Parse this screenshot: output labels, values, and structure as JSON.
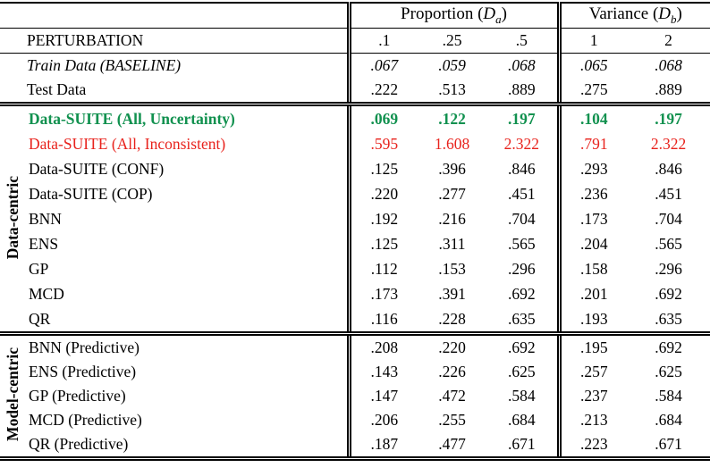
{
  "colors": {
    "highlight_green": "#11914f",
    "highlight_red": "#e8231d",
    "rule_black": "#000000"
  },
  "header": {
    "proportion": {
      "prefix": "Proportion (",
      "var": "D",
      "sub": "a",
      "suffix": ")"
    },
    "variance": {
      "prefix": "Variance (",
      "var": "D",
      "sub": "b",
      "suffix": ")"
    }
  },
  "perturbation": {
    "label": "PERTURBATION",
    "values": [
      ".1",
      ".25",
      ".5",
      "1",
      "2"
    ]
  },
  "baseline": {
    "rows": [
      {
        "label": "Train Data (BASELINE)",
        "values": [
          ".067",
          ".059",
          ".068",
          ".065",
          ".068"
        ]
      },
      {
        "label": "Test Data",
        "values": [
          ".222",
          ".513",
          ".889",
          ".275",
          ".889"
        ]
      }
    ]
  },
  "data_centric": {
    "group_label": "Data-centric",
    "rows": [
      {
        "label": "Data-SUITE (All, Uncertainty)",
        "values": [
          ".069",
          ".122",
          ".197",
          ".104",
          ".197"
        ]
      },
      {
        "label": "Data-SUITE (All, Inconsistent)",
        "values": [
          ".595",
          "1.608",
          "2.322",
          ".791",
          "2.322"
        ]
      },
      {
        "label": "Data-SUITE (CONF)",
        "values": [
          ".125",
          ".396",
          ".846",
          ".293",
          ".846"
        ]
      },
      {
        "label": "Data-SUITE (COP)",
        "values": [
          ".220",
          ".277",
          ".451",
          ".236",
          ".451"
        ]
      },
      {
        "label": "BNN",
        "values": [
          ".192",
          ".216",
          ".704",
          ".173",
          ".704"
        ]
      },
      {
        "label": "ENS",
        "values": [
          ".125",
          ".311",
          ".565",
          ".204",
          ".565"
        ]
      },
      {
        "label": "GP",
        "values": [
          ".112",
          ".153",
          ".296",
          ".158",
          ".296"
        ]
      },
      {
        "label": "MCD",
        "values": [
          ".173",
          ".391",
          ".692",
          ".201",
          ".692"
        ]
      },
      {
        "label": "QR",
        "values": [
          ".116",
          ".228",
          ".635",
          ".193",
          ".635"
        ]
      }
    ]
  },
  "model_centric": {
    "group_label": "Model-centric",
    "rows": [
      {
        "label": "BNN (Predictive)",
        "values": [
          ".208",
          ".220",
          ".692",
          ".195",
          ".692"
        ]
      },
      {
        "label": "ENS (Predictive)",
        "values": [
          ".143",
          ".226",
          ".625",
          ".257",
          ".625"
        ]
      },
      {
        "label": "GP (Predictive)",
        "values": [
          ".147",
          ".472",
          ".584",
          ".237",
          ".584"
        ]
      },
      {
        "label": "MCD (Predictive)",
        "values": [
          ".206",
          ".255",
          ".684",
          ".213",
          ".684"
        ]
      },
      {
        "label": "QR (Predictive)",
        "values": [
          ".187",
          ".477",
          ".671",
          ".223",
          ".671"
        ]
      }
    ]
  }
}
